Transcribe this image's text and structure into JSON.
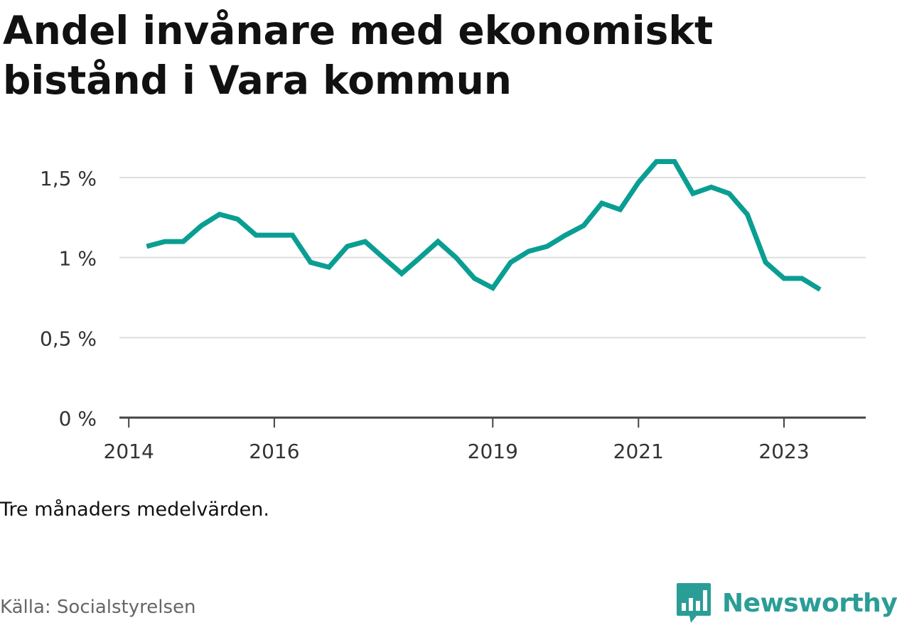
{
  "title": "Andel invånare med ekonomiskt bistånd i Vara kommun",
  "note": "Tre månaders medelvärden.",
  "source": "Källa: Socialstyrelsen",
  "brand": {
    "name": "Newsworthy",
    "icon": "newsworthy-chart-bubble-icon",
    "color": "#2a9d96"
  },
  "colors": {
    "line": "#0a9e93",
    "grid": "#dddddd",
    "axis": "#444444",
    "text": "#333333"
  },
  "chart_data": {
    "type": "line",
    "title": "Andel invånare med ekonomiskt bistånd i Vara kommun",
    "xlabel": "",
    "ylabel": "",
    "ylim": [
      0,
      1.5
    ],
    "xlim": [
      "2013-11-15",
      "2024-02-15"
    ],
    "yticks": [
      {
        "value": 0,
        "label": "0 %"
      },
      {
        "value": 0.5,
        "label": "0,5 %"
      },
      {
        "value": 1,
        "label": "1 %"
      },
      {
        "value": 1.5,
        "label": "1,5 %"
      }
    ],
    "xticks": [
      {
        "value": "2014-01-01",
        "label": "2014"
      },
      {
        "value": "2016-01-01",
        "label": "2016"
      },
      {
        "value": "2019-01-01",
        "label": "2019"
      },
      {
        "value": "2021-01-01",
        "label": "2021"
      },
      {
        "value": "2023-01-01",
        "label": "2023"
      }
    ],
    "grid": true,
    "legend": "none",
    "series": [
      {
        "x": [
          "2014-04-01",
          "2014-07-01",
          "2014-10-01",
          "2015-01-01",
          "2015-04-01",
          "2015-07-01",
          "2015-10-01",
          "2016-01-01",
          "2016-04-01",
          "2016-07-01",
          "2016-10-01",
          "2017-01-01",
          "2017-04-01",
          "2017-07-01",
          "2017-10-01",
          "2018-01-01",
          "2018-04-01",
          "2018-07-01",
          "2018-10-01",
          "2019-01-01",
          "2019-04-01",
          "2019-07-01",
          "2019-10-01",
          "2020-01-01",
          "2020-04-01",
          "2020-07-01",
          "2020-10-01",
          "2021-01-01",
          "2021-04-01",
          "2021-07-01",
          "2021-10-01",
          "2022-01-01",
          "2022-04-01",
          "2022-07-01",
          "2022-10-01",
          "2023-01-01",
          "2023-04-01",
          "2023-07-01"
        ],
        "values": [
          1.07,
          1.1,
          1.1,
          1.2,
          1.27,
          1.24,
          1.14,
          1.14,
          1.14,
          0.97,
          0.94,
          1.07,
          1.1,
          1.0,
          0.9,
          1.0,
          1.1,
          1.0,
          0.87,
          0.81,
          0.97,
          1.04,
          1.07,
          1.14,
          1.2,
          1.34,
          1.3,
          1.47,
          1.6,
          1.6,
          1.4,
          1.44,
          1.4,
          1.27,
          0.97,
          0.87,
          0.87,
          0.8
        ]
      }
    ]
  }
}
